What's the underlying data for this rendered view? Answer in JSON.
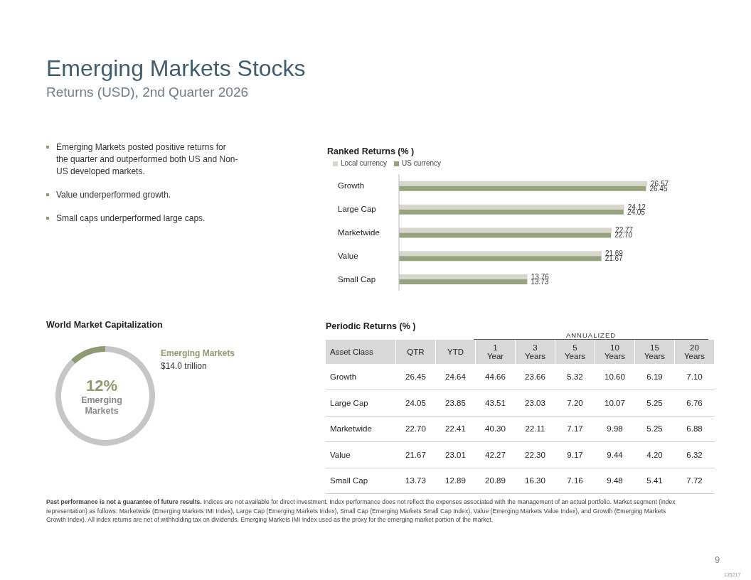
{
  "chart_data": [
    {
      "type": "other",
      "title": "Emerging Markets Stocks",
      "subtitle": "Returns (USD), 2nd Quarter 2026",
      "annotations": [
        "Emerging Markets posted positive returns for the quarter and outperformed both US and Non-US developed markets.",
        "Value underperformed growth.",
        "Small caps underperformed large caps."
      ]
    },
    {
      "type": "bar",
      "orientation": "horizontal",
      "title": "Ranked Returns (% )",
      "categories": [
        "Growth",
        "Large Cap",
        "Marketwide",
        "Value",
        "Small Cap"
      ],
      "series": [
        {
          "name": "Local currency",
          "color": "#d7d7cd",
          "values": [
            26.57,
            24.12,
            22.77,
            21.69,
            13.76
          ],
          "value_labels": [
            "26.57",
            "24.12",
            "22.77",
            "21.69",
            "13.76"
          ]
        },
        {
          "name": "US currency",
          "color": "#97a37c",
          "values": [
            26.45,
            24.05,
            22.7,
            21.67,
            13.73
          ],
          "value_labels": [
            "26.45",
            "24.05",
            "22.70",
            "21.67",
            "13.73"
          ]
        }
      ],
      "legend": "top left",
      "grid": false
    },
    {
      "type": "donut",
      "title": "World Market Capitalization",
      "categories": [
        "Emerging Markets",
        null
      ],
      "values": [
        12,
        88
      ],
      "colors": [
        "#8e9a72",
        "#c6c6c6"
      ],
      "value_labels": [
        "12%",
        null
      ],
      "annotations": [
        "$14.0 trillion"
      ]
    },
    {
      "type": "heatmap",
      "data_labels": true,
      "title": "Periodic Returns (% )",
      "ylabel": "Asset Class",
      "annotations": [
        "ANNUALIZED"
      ],
      "categories": [
        "QTR",
        "YTD",
        "1 Year",
        "3 Years",
        "5 Years",
        "10 Years",
        "15 Years",
        "20 Years"
      ],
      "y_categories": [
        "Growth",
        "Large Cap",
        "Marketwide",
        "Value",
        "Small Cap"
      ],
      "cells": [
        [
          26.45,
          24.64,
          44.66,
          23.66,
          5.32,
          10.6,
          6.19,
          7.1
        ],
        [
          24.05,
          23.85,
          43.51,
          23.03,
          7.2,
          10.07,
          5.25,
          6.76
        ],
        [
          22.7,
          22.41,
          40.3,
          22.11,
          7.17,
          9.98,
          5.25,
          6.88
        ],
        [
          21.67,
          23.01,
          42.27,
          22.3,
          9.17,
          9.44,
          4.2,
          6.32
        ],
        [
          13.73,
          12.89,
          20.89,
          16.3,
          7.16,
          9.48,
          5.41,
          7.72
        ]
      ],
      "cell_labels": [
        [
          "26.45",
          "24.64",
          "44.66",
          "23.66",
          "5.32",
          "10.60",
          "6.19",
          "7.10"
        ],
        [
          "24.05",
          "23.85",
          "43.51",
          "23.03",
          "7.20",
          "10.07",
          "5.25",
          "6.76"
        ],
        [
          "22.70",
          "22.41",
          "40.30",
          "22.11",
          "7.17",
          "9.98",
          "5.25",
          "6.88"
        ],
        [
          "21.67",
          "23.01",
          "42.27",
          "22.30",
          "9.17",
          "9.44",
          "4.20",
          "6.32"
        ],
        [
          "13.73",
          "12.89",
          "20.89",
          "16.30",
          "7.16",
          "9.48",
          "5.41",
          "7.72"
        ]
      ]
    },
    {
      "type": "other",
      "annotations": [
        "Past performance is not a guarantee of future results.",
        "Indices are not available for direct investment. Index performance does not reflect the expenses associated with the management of an actual portfolio. Market segment (index representation) as follows: Marketwide (Emerging Markets IMI Index), Large Cap (Emerging Markets Index), Small Cap (Emerging Markets Small Cap Index), Value (Emerging Markets Value Index), and Growth (Emerging Markets Growth Index). All index returns are net of withholding tax on dividends. Emerging Markets IMI Index used as the proxy for the emerging market portion of the market.",
        "9",
        "135217"
      ]
    }
  ]
}
